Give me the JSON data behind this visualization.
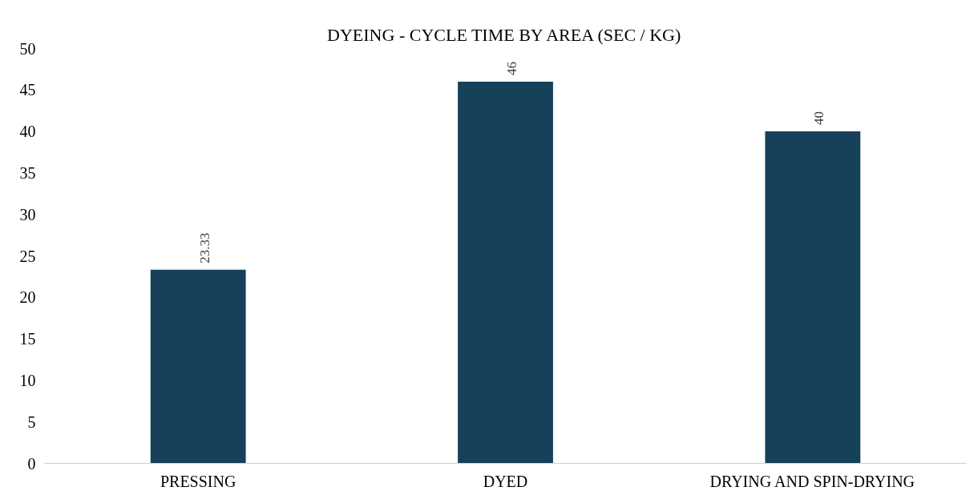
{
  "chart_data": {
    "type": "bar",
    "title": "DYEING - CYCLE TIME BY AREA (SEC / KG)",
    "categories": [
      "PRESSING",
      "DYED",
      "DRYING AND SPIN-DRYING"
    ],
    "values": [
      23.33,
      46,
      40
    ],
    "color": "#17415a",
    "ylim": [
      0,
      50
    ],
    "yticks": [
      0,
      5,
      10,
      15,
      20,
      25,
      30,
      35,
      40,
      45,
      50
    ],
    "grid": false,
    "data_labels": true
  }
}
